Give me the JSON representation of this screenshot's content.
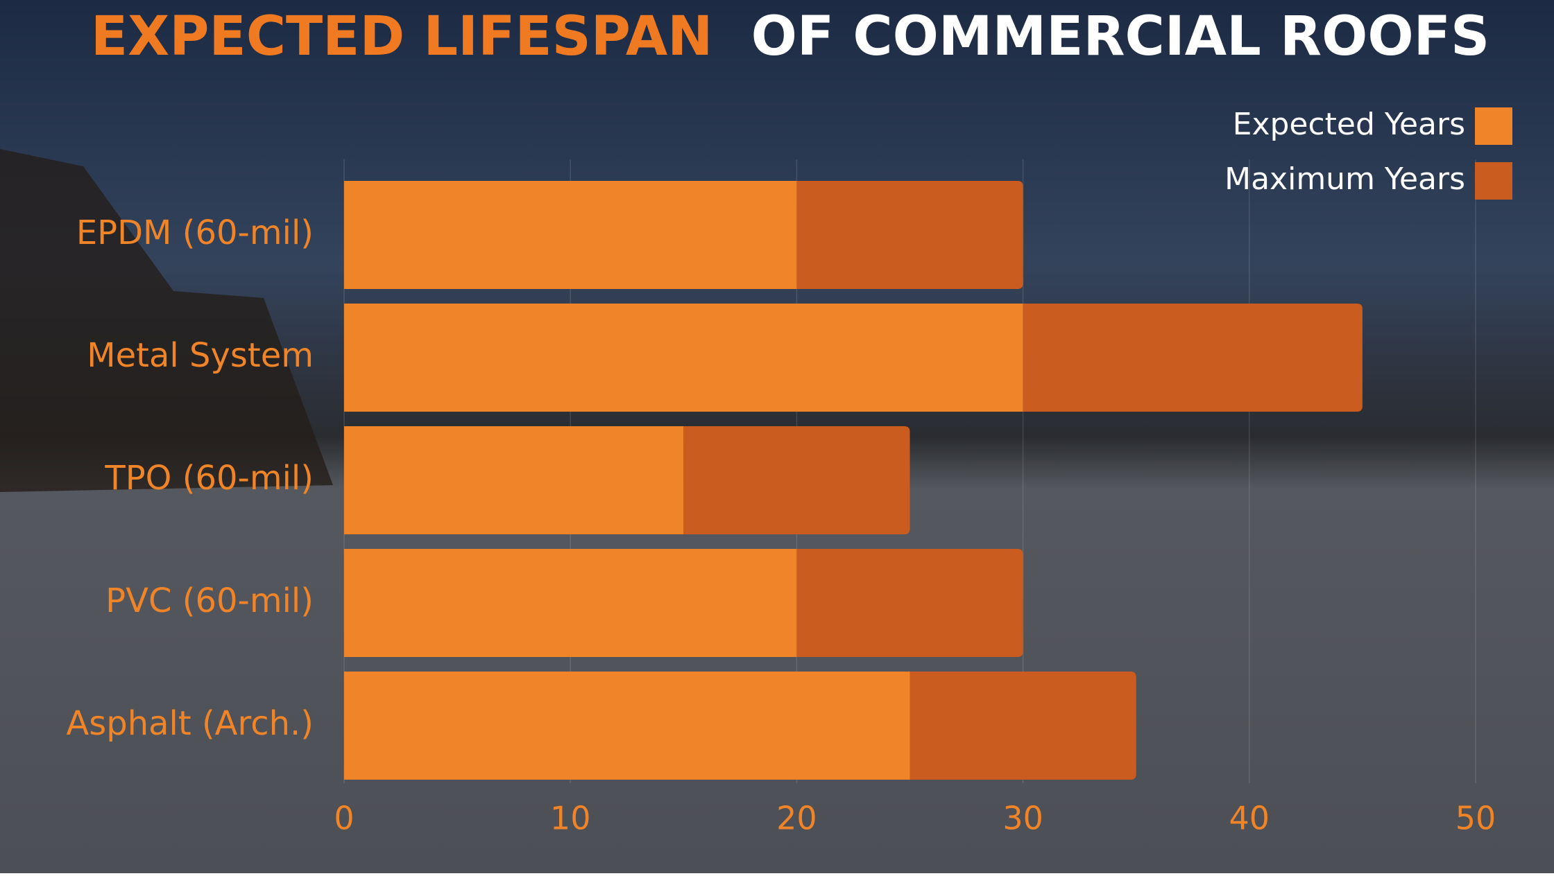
{
  "chart_data": {
    "type": "stacked_barh",
    "title": [
      "EXPECTED LIFESPAN",
      "OF COMMERCIAL ROOFS"
    ],
    "categories": [
      "EPDM (60-mil)",
      "Metal System",
      "TPO (60-mil)",
      "PVC (60-mil)",
      "Asphalt (Arch.)"
    ],
    "series": [
      {
        "name": "Expected Years",
        "color": "#ef8428",
        "values": [
          20,
          30,
          15,
          20,
          25
        ]
      },
      {
        "name": "Maximum Years",
        "color": "#cb5c1f",
        "values": [
          10,
          15,
          10,
          10,
          10
        ]
      }
    ],
    "xlim": [
      0,
      50
    ],
    "xticks": [
      0,
      10,
      20,
      30,
      40,
      50
    ],
    "grid": true,
    "legend": "top-right"
  }
}
